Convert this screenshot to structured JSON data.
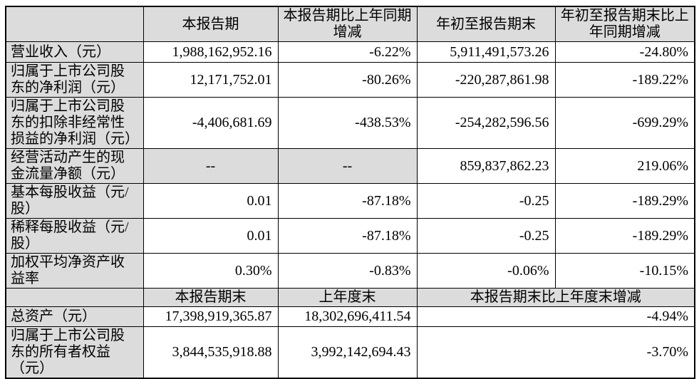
{
  "colors": {
    "shaded_cell_bg": "#dcdcdc",
    "data_cell_bg": "#ffffff",
    "grid_line": "#000000",
    "text": "#000000"
  },
  "table": {
    "header_row_1": {
      "cells": [
        "",
        "本报告期",
        "本报告期比上年同期增减",
        "年初至报告期末",
        "年初至报告期末比上年同期增减"
      ]
    },
    "body_rows_1": [
      {
        "label": "营业收入（元）",
        "values": [
          "1,988,162,952.16",
          "-6.22%",
          "5,911,491,573.26",
          "-24.80%"
        ]
      },
      {
        "label": "归属于上市公司股东的净利润（元）",
        "values": [
          "12,171,752.01",
          "-80.26%",
          "-220,287,861.98",
          "-189.22%"
        ]
      },
      {
        "label": "归属于上市公司股东的扣除非经常性损益的净利润（元）",
        "values": [
          "-4,406,681.69",
          "-438.53%",
          "-254,282,596.56",
          "-699.29%"
        ]
      },
      {
        "label": "经营活动产生的现金流量净额（元）",
        "values": [
          "--",
          "--",
          "859,837,862.23",
          "219.06%"
        ]
      },
      {
        "label": "基本每股收益（元/股）",
        "values": [
          "0.01",
          "-87.18%",
          "-0.25",
          "-189.29%"
        ]
      },
      {
        "label": "稀释每股收益（元/股）",
        "values": [
          "0.01",
          "-87.18%",
          "-0.25",
          "-189.29%"
        ]
      },
      {
        "label": "加权平均净资产收益率",
        "values": [
          "0.30%",
          "-0.83%",
          "-0.06%",
          "-10.15%"
        ]
      }
    ],
    "header_row_2": {
      "cells": [
        "",
        "本报告期末",
        "上年度末",
        "本报告期末比上年度末增减"
      ]
    },
    "body_rows_2": [
      {
        "label": "总资产（元）",
        "values": [
          "17,398,919,365.87",
          "18,302,696,411.54",
          "-4.94%"
        ]
      },
      {
        "label": "归属于上市公司股东的所有者权益（元）",
        "values": [
          "3,844,535,918.88",
          "3,992,142,694.43",
          "-3.70%"
        ]
      }
    ]
  }
}
